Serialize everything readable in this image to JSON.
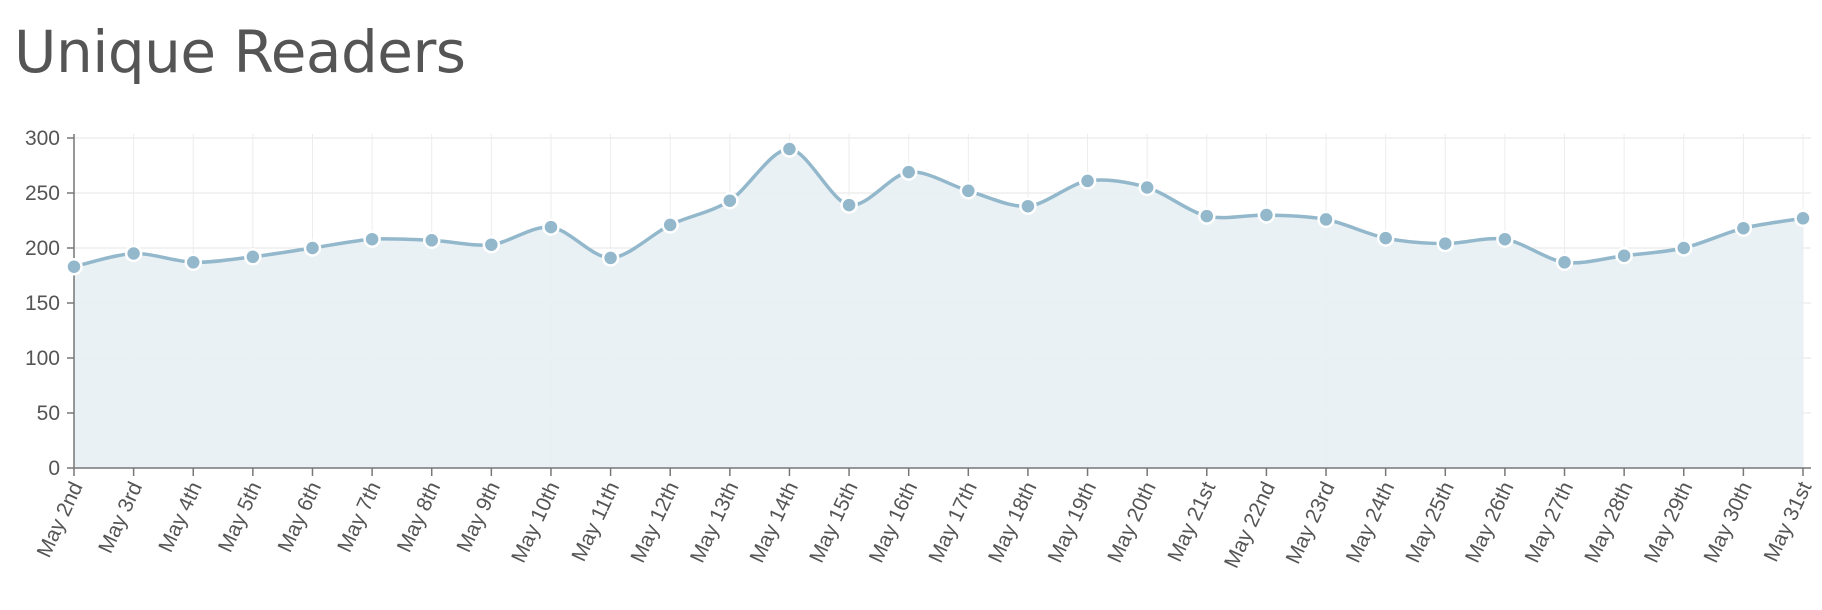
{
  "chart_data": {
    "type": "area",
    "title": "Unique Readers",
    "xlabel": "",
    "ylabel": "",
    "ylim": [
      0,
      300
    ],
    "yticks": [
      0,
      50,
      100,
      150,
      200,
      250,
      300
    ],
    "grid": true,
    "legend": "none",
    "categories": [
      "May 2nd",
      "May 3rd",
      "May 4th",
      "May 5th",
      "May 6th",
      "May 7th",
      "May 8th",
      "May 9th",
      "May 10th",
      "May 11th",
      "May 12th",
      "May 13th",
      "May 14th",
      "May 15th",
      "May 16th",
      "May 17th",
      "May 18th",
      "May 19th",
      "May 20th",
      "May 21st",
      "May 22nd",
      "May 23rd",
      "May 24th",
      "May 25th",
      "May 26th",
      "May 27th",
      "May 28th",
      "May 29th",
      "May 30th",
      "May 31st"
    ],
    "series": [
      {
        "values": [
          183,
          195,
          187,
          192,
          200,
          208,
          207,
          203,
          219,
          191,
          221,
          243,
          290,
          239,
          269,
          252,
          238,
          261,
          255,
          229,
          230,
          226,
          209,
          204,
          208,
          187,
          193,
          200,
          218,
          227
        ],
        "color": "#93b8cc",
        "fill": "#e8f0f4"
      }
    ]
  }
}
